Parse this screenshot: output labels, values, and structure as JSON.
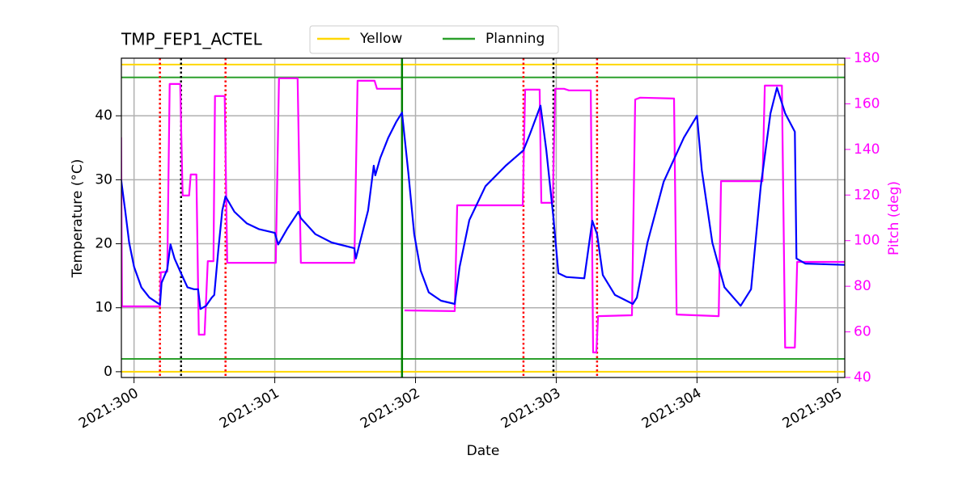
{
  "chart_data": {
    "type": "line",
    "title": "TMP_FEP1_ACTEL",
    "x_label": "Date",
    "y_label": "Temperature (°C)",
    "y2_label": "Pitch (deg)",
    "xlim": [
      299.91,
      305.05
    ],
    "xticks": [
      {
        "value": 300,
        "label": "2021:300"
      },
      {
        "value": 301,
        "label": "2021:301"
      },
      {
        "value": 302,
        "label": "2021:302"
      },
      {
        "value": 303,
        "label": "2021:303"
      },
      {
        "value": 304,
        "label": "2021:304"
      },
      {
        "value": 305,
        "label": "2021:305"
      }
    ],
    "ylim": [
      -0.9,
      49
    ],
    "yticks": [
      0,
      10,
      20,
      30,
      40
    ],
    "y2lim": [
      40,
      180
    ],
    "y2ticks": [
      40,
      60,
      80,
      100,
      120,
      140,
      160,
      180
    ],
    "grid": true,
    "hlines": [
      {
        "name": "Yellow",
        "color": "#ffd700",
        "values": [
          48,
          0
        ]
      },
      {
        "name": "Planning",
        "color": "#2ca02c",
        "values": [
          46,
          2
        ]
      }
    ],
    "vlines": [
      {
        "color": "#ff0000",
        "style": "dotted",
        "x": [
          300.184,
          300.65,
          302.767,
          303.29
        ]
      },
      {
        "color": "#000000",
        "style": "dotted",
        "x": [
          300.334,
          302.98
        ]
      },
      {
        "color": "#008000",
        "style": "solid",
        "x": [
          301.904
        ]
      }
    ],
    "series": [
      {
        "color": "#0000ff",
        "axis": "y",
        "x": [
          299.908,
          299.937,
          299.965,
          300.0,
          300.052,
          300.109,
          300.184,
          300.196,
          300.236,
          300.259,
          300.288,
          300.334,
          300.38,
          300.426,
          300.455,
          300.472,
          300.512,
          300.552,
          300.57,
          300.598,
          300.627,
          300.65,
          300.713,
          300.8,
          300.886,
          301.0,
          301.024,
          301.087,
          301.168,
          301.185,
          301.289,
          301.404,
          301.565,
          301.576,
          301.605,
          301.663,
          301.703,
          301.714,
          301.749,
          301.807,
          301.864,
          301.904,
          301.95,
          301.991,
          302.037,
          302.094,
          302.181,
          302.279,
          302.313,
          302.382,
          302.497,
          302.641,
          302.767,
          302.814,
          302.888,
          302.929,
          302.98,
          303.015,
          303.072,
          303.199,
          303.256,
          303.29,
          303.331,
          303.417,
          303.544,
          303.573,
          303.648,
          303.763,
          303.907,
          304.0,
          304.034,
          304.109,
          304.195,
          304.31,
          304.384,
          304.453,
          304.522,
          304.568,
          304.626,
          304.695,
          304.707,
          304.77,
          305.052
        ],
        "values": [
          30.0,
          25.2,
          20.2,
          16.4,
          13.2,
          11.6,
          10.5,
          13.9,
          16.0,
          19.9,
          17.7,
          15.4,
          13.2,
          12.9,
          12.9,
          9.8,
          10.3,
          11.6,
          12.0,
          18.9,
          25.2,
          27.4,
          25.0,
          23.2,
          22.3,
          21.7,
          19.9,
          22.3,
          25.0,
          24.0,
          21.5,
          20.2,
          19.3,
          17.7,
          20.2,
          25.2,
          32.2,
          30.7,
          33.4,
          36.6,
          39.1,
          40.5,
          30.9,
          21.5,
          15.8,
          12.4,
          11.1,
          10.6,
          16.4,
          23.7,
          29.0,
          32.2,
          34.6,
          37.2,
          41.6,
          34.7,
          24.0,
          15.4,
          14.8,
          14.6,
          23.6,
          21.5,
          15.1,
          12.0,
          10.6,
          11.6,
          20.2,
          29.7,
          36.6,
          40.0,
          31.5,
          20.2,
          13.2,
          10.3,
          12.9,
          29.0,
          40.4,
          44.4,
          40.4,
          37.5,
          17.7,
          16.9,
          16.7
        ]
      },
      {
        "color": "#ff00ff",
        "axis": "y2",
        "x": [
          299.908,
          299.914,
          300.184,
          300.19,
          300.236,
          300.253,
          300.328,
          300.345,
          300.391,
          300.403,
          300.443,
          300.46,
          300.501,
          300.524,
          300.564,
          300.575,
          300.644,
          300.662,
          301.007,
          301.03,
          301.162,
          301.185,
          301.565,
          301.588,
          301.709,
          301.726,
          301.899,
          301.91,
          301.922,
          302.279,
          302.296,
          302.762,
          302.779,
          302.882,
          302.894,
          302.975,
          302.992,
          303.055,
          303.09,
          303.245,
          303.262,
          303.285,
          303.297,
          303.538,
          303.561,
          303.596,
          303.837,
          303.855,
          304.154,
          304.171,
          304.465,
          304.482,
          304.603,
          304.626,
          304.695,
          304.712,
          305.052
        ],
        "values": [
          145.3,
          71.2,
          71.2,
          86.1,
          86.4,
          168.7,
          168.7,
          119.8,
          119.8,
          129.0,
          129.0,
          58.8,
          58.8,
          91.0,
          91.0,
          163.4,
          163.4,
          90.3,
          90.3,
          171.2,
          171.2,
          90.3,
          90.3,
          170.1,
          170.1,
          166.6,
          166.6,
          null,
          69.4,
          69.1,
          115.5,
          115.5,
          166.2,
          166.2,
          116.6,
          116.6,
          166.6,
          166.6,
          165.9,
          165.9,
          51.0,
          51.0,
          66.9,
          67.3,
          161.9,
          162.7,
          162.3,
          67.6,
          66.9,
          126.1,
          126.1,
          168.0,
          168.0,
          53.1,
          53.1,
          90.7,
          90.7
        ]
      }
    ]
  }
}
